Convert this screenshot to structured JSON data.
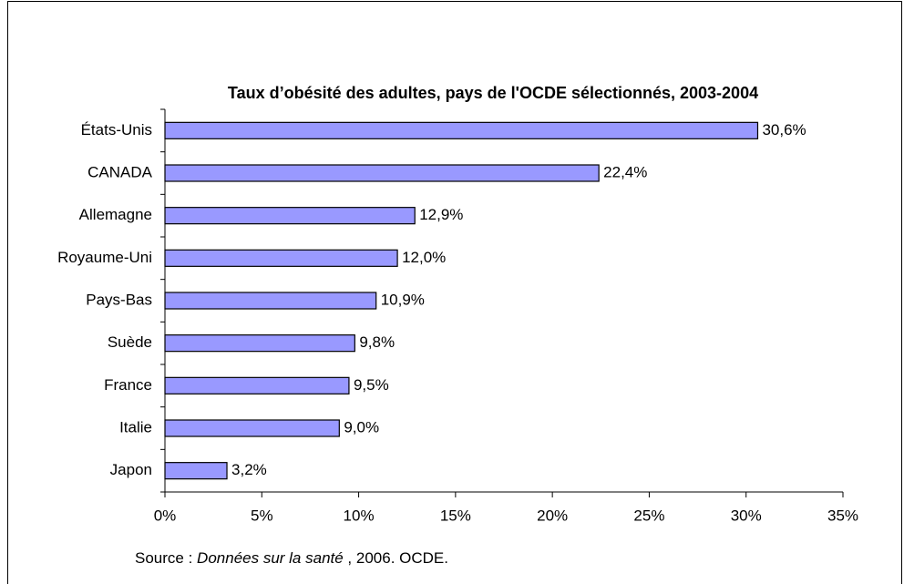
{
  "chart_data": {
    "type": "bar",
    "orientation": "horizontal",
    "title": "Taux d’obésité des adultes, pays de l'OCDE sélectionnés, 2003-2004",
    "categories": [
      "États-Unis",
      "CANADA",
      "Allemagne",
      "Royaume-Uni",
      "Pays-Bas",
      "Suède",
      "France",
      "Italie",
      "Japon"
    ],
    "values": [
      30.6,
      22.4,
      12.9,
      12.0,
      10.9,
      9.8,
      9.5,
      9.0,
      3.2
    ],
    "value_labels": [
      "30,6%",
      "22,4%",
      "12,9%",
      "12,0%",
      "10,9%",
      "9,8%",
      "9,5%",
      "9,0%",
      "3,2%"
    ],
    "color": "#9999ff",
    "xlim": [
      0,
      35
    ],
    "xticks": [
      {
        "value": 0,
        "label": "0%"
      },
      {
        "value": 5,
        "label": "5%"
      },
      {
        "value": 10,
        "label": "10%"
      },
      {
        "value": 15,
        "label": "15%"
      },
      {
        "value": 20,
        "label": "20%"
      },
      {
        "value": 25,
        "label": "25%"
      },
      {
        "value": 30,
        "label": "30%"
      },
      {
        "value": 35,
        "label": "35%"
      }
    ],
    "grid": false,
    "source": {
      "prefix": "Source : ",
      "publication": "Données sur la santé",
      "suffix": " , 2006. OCDE."
    }
  }
}
